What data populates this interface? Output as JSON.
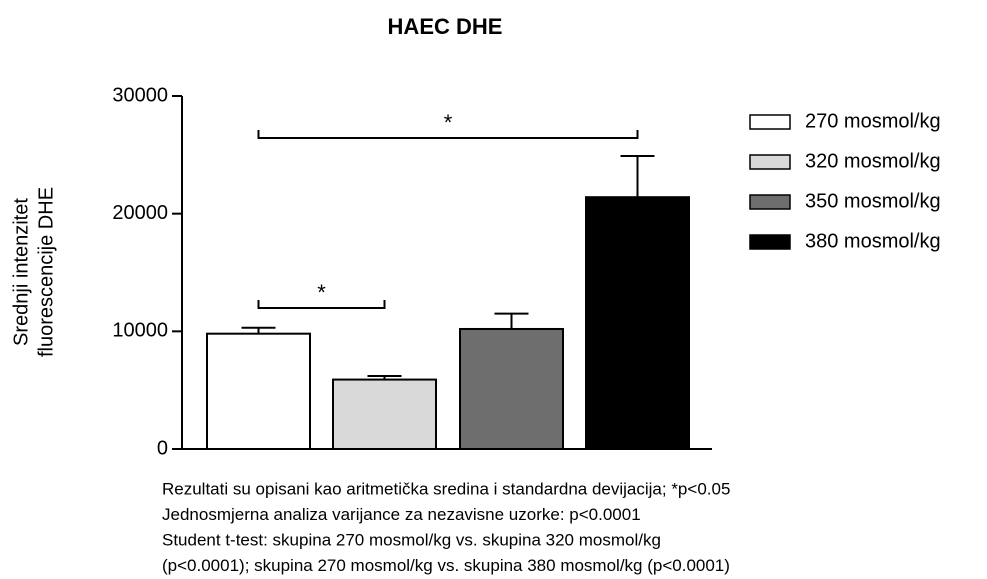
{
  "chart_data": {
    "type": "bar",
    "title": "HAEC DHE",
    "ylabel": [
      "Srednji intenzitet",
      "fluorescencije DHE"
    ],
    "categories": [
      "270 mosmol/kg",
      "320 mosmol/kg",
      "350 mosmol/kg",
      "380 mosmol/kg"
    ],
    "values": [
      9800,
      5900,
      10200,
      21400
    ],
    "errors": [
      500,
      300,
      1300,
      3500
    ],
    "colors": [
      "#ffffff",
      "#d9d9d9",
      "#6e6e6e",
      "#000000"
    ],
    "ylim": [
      0,
      30000
    ],
    "yticks": [
      0,
      10000,
      20000,
      30000
    ],
    "annotations": [
      "*",
      "*"
    ],
    "legend": "right",
    "notes": [
      "Rezultati su opisani kao aritmetička sredina i standardna devijacija; *p<0.05",
      "Jednosmjerna analiza varijance za nezavisne uzorke: p<0.0001",
      "Student t-test: skupina 270 mosmol/kg vs. skupina 320 mosmol/kg",
      "(p<0.0001); skupina 270 mosmol/kg vs. skupina 380 mosmol/kg (p<0.0001)"
    ]
  }
}
